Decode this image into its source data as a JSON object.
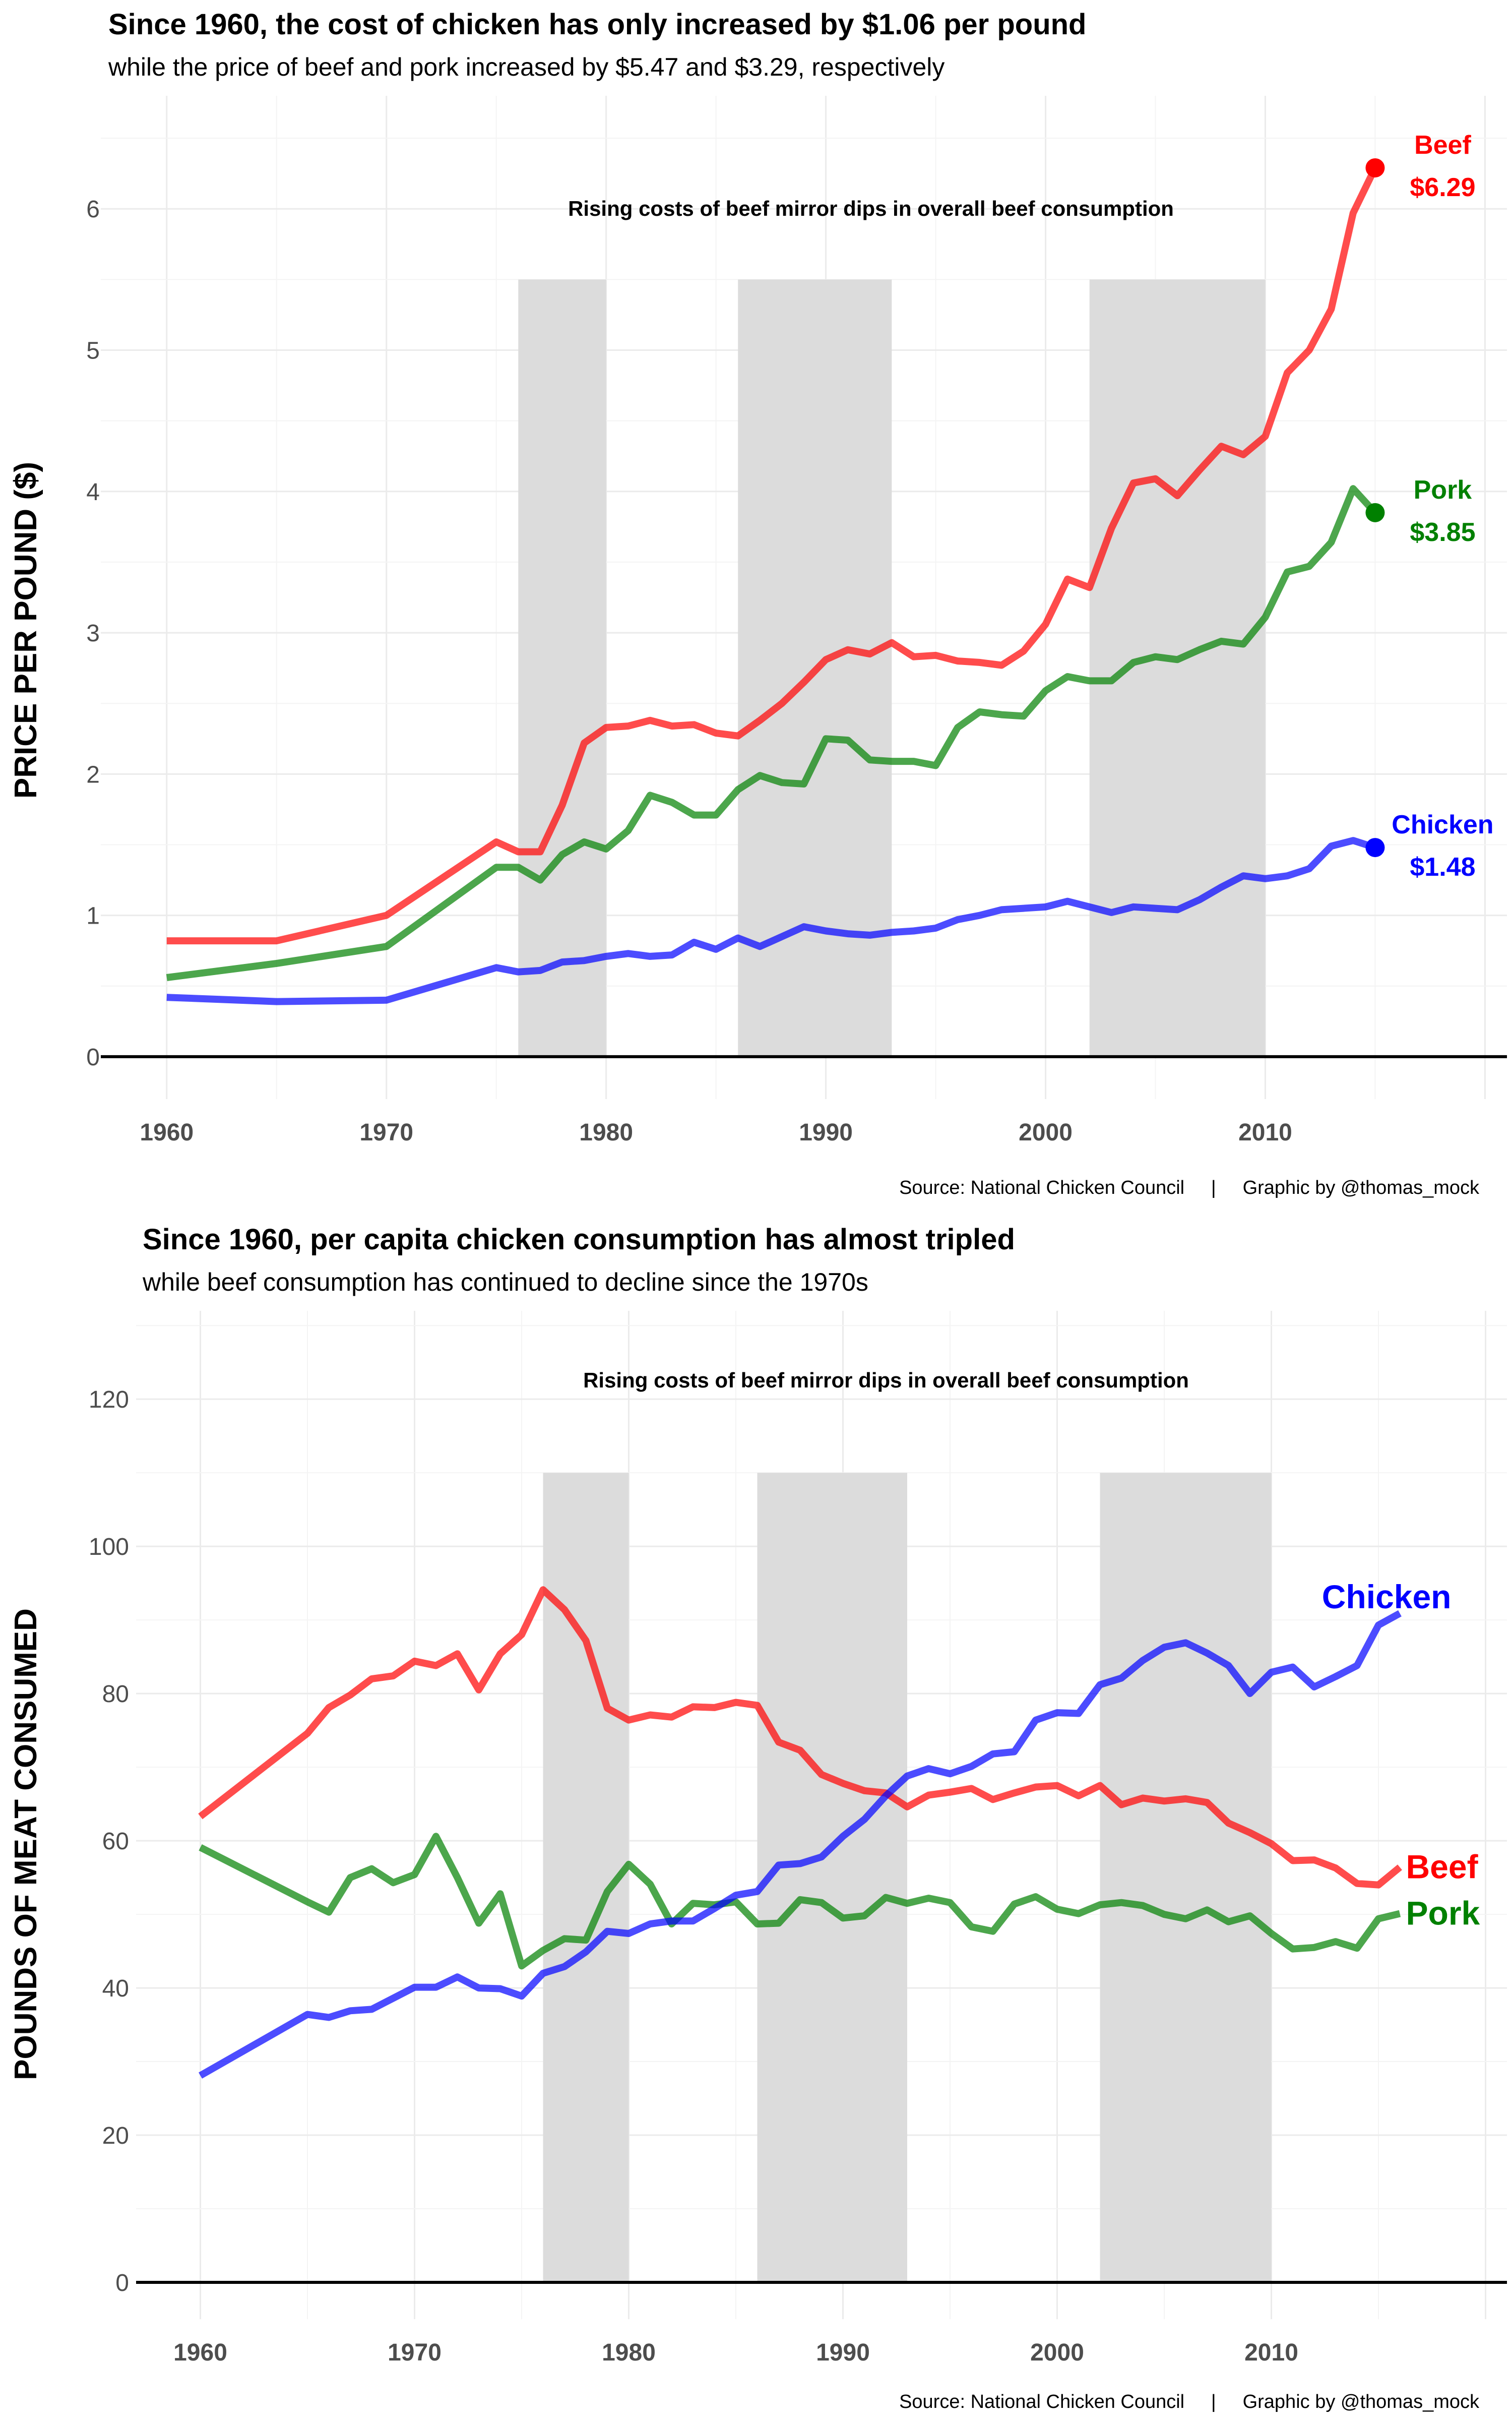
{
  "chart_data": [
    {
      "type": "line",
      "title": "Since 1960, the cost of chicken has only increased by $1.06 per pound",
      "subtitle": "while the price of beef and pork increased by $5.47 and $3.29, respectively",
      "xlabel": "",
      "ylabel": "PRICE PER POUND ($)",
      "xlim": [
        1957,
        2021
      ],
      "ylim": [
        -0.3,
        6.8
      ],
      "x_ticks": [
        1960,
        1970,
        1980,
        1990,
        2000,
        2010
      ],
      "y_ticks": [
        0,
        1,
        2,
        3,
        4,
        5,
        6
      ],
      "grid": true,
      "shaded_periods": [
        [
          1976,
          1980
        ],
        [
          1986,
          1993
        ],
        [
          2002,
          2010
        ]
      ],
      "shade_top": 5.5,
      "annotation": "Rising costs of beef mirror dips in overall beef consumption",
      "caption": "Source: National Chicken Council     |     Graphic by @thomas_mock",
      "series": [
        {
          "name": "Beef",
          "color": "#FF0000",
          "end_label": "Beef",
          "end_value_label": "$6.29",
          "end_point": [
            2015,
            6.29
          ],
          "x": [
            1960,
            1965,
            1970,
            1975,
            1976,
            1977,
            1978,
            1979,
            1980,
            1981,
            1982,
            1983,
            1984,
            1985,
            1986,
            1987,
            1988,
            1989,
            1990,
            1991,
            1992,
            1993,
            1994,
            1995,
            1996,
            1997,
            1998,
            1999,
            2000,
            2001,
            2002,
            2003,
            2004,
            2005,
            2006,
            2007,
            2008,
            2009,
            2010,
            2011,
            2012,
            2013,
            2014,
            2015
          ],
          "values": [
            0.82,
            0.82,
            1.0,
            1.52,
            1.45,
            1.45,
            1.78,
            2.22,
            2.33,
            2.34,
            2.38,
            2.34,
            2.35,
            2.29,
            2.27,
            2.38,
            2.5,
            2.65,
            2.81,
            2.88,
            2.85,
            2.93,
            2.83,
            2.84,
            2.8,
            2.79,
            2.77,
            2.87,
            3.06,
            3.38,
            3.32,
            3.74,
            4.06,
            4.09,
            3.97,
            4.15,
            4.32,
            4.26,
            4.39,
            4.84,
            5.0,
            5.29,
            5.97,
            6.29
          ]
        },
        {
          "name": "Pork",
          "color": "#008000",
          "end_label": "Pork",
          "end_value_label": "$3.85",
          "end_point": [
            2015,
            3.85
          ],
          "x": [
            1960,
            1965,
            1970,
            1975,
            1976,
            1977,
            1978,
            1979,
            1980,
            1981,
            1982,
            1983,
            1984,
            1985,
            1986,
            1987,
            1988,
            1989,
            1990,
            1991,
            1992,
            1993,
            1994,
            1995,
            1996,
            1997,
            1998,
            1999,
            2000,
            2001,
            2002,
            2003,
            2004,
            2005,
            2006,
            2007,
            2008,
            2009,
            2010,
            2011,
            2012,
            2013,
            2014,
            2015
          ],
          "values": [
            0.56,
            0.66,
            0.78,
            1.34,
            1.34,
            1.25,
            1.43,
            1.52,
            1.47,
            1.6,
            1.85,
            1.8,
            1.71,
            1.71,
            1.89,
            1.99,
            1.94,
            1.93,
            2.25,
            2.24,
            2.1,
            2.09,
            2.09,
            2.06,
            2.33,
            2.44,
            2.42,
            2.41,
            2.59,
            2.69,
            2.66,
            2.66,
            2.79,
            2.83,
            2.81,
            2.88,
            2.94,
            2.92,
            3.11,
            3.43,
            3.47,
            3.64,
            4.02,
            3.85
          ]
        },
        {
          "name": "Chicken",
          "color": "#0000FF",
          "end_label": "Chicken",
          "end_value_label": "$1.48",
          "end_point": [
            2015,
            1.48
          ],
          "x": [
            1960,
            1965,
            1970,
            1975,
            1976,
            1977,
            1978,
            1979,
            1980,
            1981,
            1982,
            1983,
            1984,
            1985,
            1986,
            1987,
            1988,
            1989,
            1990,
            1991,
            1992,
            1993,
            1994,
            1995,
            1996,
            1997,
            1998,
            1999,
            2000,
            2001,
            2002,
            2003,
            2004,
            2005,
            2006,
            2007,
            2008,
            2009,
            2010,
            2011,
            2012,
            2013,
            2014,
            2015
          ],
          "values": [
            0.42,
            0.39,
            0.4,
            0.63,
            0.6,
            0.61,
            0.67,
            0.68,
            0.71,
            0.73,
            0.71,
            0.72,
            0.81,
            0.76,
            0.84,
            0.78,
            0.85,
            0.92,
            0.89,
            0.87,
            0.86,
            0.88,
            0.89,
            0.91,
            0.97,
            1.0,
            1.04,
            1.05,
            1.06,
            1.1,
            1.06,
            1.02,
            1.06,
            1.05,
            1.04,
            1.11,
            1.2,
            1.28,
            1.26,
            1.28,
            1.33,
            1.49,
            1.53,
            1.48
          ]
        }
      ]
    },
    {
      "type": "line",
      "title": "Since 1960, per capita chicken consumption has almost tripled",
      "subtitle": "while beef consumption has continued to decline since the 1970s",
      "xlabel": "",
      "ylabel": "POUNDS OF MEAT CONSUMED",
      "xlim": [
        1957,
        2021
      ],
      "ylim": [
        -5,
        132
      ],
      "x_ticks": [
        1960,
        1970,
        1980,
        1990,
        2000,
        2010
      ],
      "y_ticks": [
        0,
        20,
        40,
        60,
        80,
        100,
        120
      ],
      "grid": true,
      "shaded_periods": [
        [
          1976,
          1980
        ],
        [
          1986,
          1993
        ],
        [
          2002,
          2010
        ]
      ],
      "shade_top": 110,
      "annotation": "Rising costs of beef mirror dips in overall beef consumption",
      "caption": "Source: National Chicken Council     |     Graphic by @thomas_mock",
      "series": [
        {
          "name": "Beef",
          "color": "#FF0000",
          "end_label": "Beef",
          "x": [
            1960,
            1965,
            1966,
            1967,
            1968,
            1969,
            1970,
            1971,
            1972,
            1973,
            1974,
            1975,
            1976,
            1977,
            1978,
            1979,
            1980,
            1981,
            1982,
            1983,
            1984,
            1985,
            1986,
            1987,
            1988,
            1989,
            1990,
            1991,
            1992,
            1993,
            1994,
            1995,
            1996,
            1997,
            1998,
            1999,
            2000,
            2001,
            2002,
            2003,
            2004,
            2005,
            2006,
            2007,
            2008,
            2009,
            2010,
            2011,
            2012,
            2013,
            2014,
            2015,
            2016
          ],
          "values": [
            63.3,
            74.6,
            78.1,
            79.8,
            82.0,
            82.4,
            84.4,
            83.8,
            85.4,
            80.5,
            85.4,
            88.0,
            94.1,
            91.4,
            87.2,
            78.0,
            76.4,
            77.1,
            76.8,
            78.2,
            78.1,
            78.8,
            78.4,
            73.4,
            72.3,
            69.0,
            67.8,
            66.8,
            66.5,
            64.6,
            66.2,
            66.6,
            67.1,
            65.6,
            66.5,
            67.3,
            67.5,
            66.1,
            67.5,
            64.9,
            65.8,
            65.4,
            65.7,
            65.2,
            62.4,
            61.1,
            59.6,
            57.3,
            57.4,
            56.3,
            54.2,
            54.0,
            56.4
          ]
        },
        {
          "name": "Pork",
          "color": "#008000",
          "end_label": "Pork",
          "x": [
            1960,
            1965,
            1966,
            1967,
            1968,
            1969,
            1970,
            1971,
            1972,
            1973,
            1974,
            1975,
            1976,
            1977,
            1978,
            1979,
            1980,
            1981,
            1982,
            1983,
            1984,
            1985,
            1986,
            1987,
            1988,
            1989,
            1990,
            1991,
            1992,
            1993,
            1994,
            1995,
            1996,
            1997,
            1998,
            1999,
            2000,
            2001,
            2002,
            2003,
            2004,
            2005,
            2006,
            2007,
            2008,
            2009,
            2010,
            2011,
            2012,
            2013,
            2014,
            2015,
            2016
          ],
          "values": [
            59.1,
            51.7,
            50.3,
            55.0,
            56.2,
            54.3,
            55.4,
            60.6,
            55.0,
            48.8,
            52.8,
            43.0,
            45.1,
            46.7,
            46.5,
            53.1,
            56.8,
            54.1,
            48.7,
            51.5,
            51.3,
            51.7,
            48.7,
            48.8,
            52.0,
            51.6,
            49.5,
            49.8,
            52.3,
            51.5,
            52.2,
            51.6,
            48.3,
            47.7,
            51.4,
            52.4,
            50.7,
            50.1,
            51.3,
            51.6,
            51.2,
            50.0,
            49.4,
            50.6,
            49.0,
            49.8,
            47.4,
            45.3,
            45.5,
            46.3,
            45.4,
            49.4,
            50.1
          ]
        },
        {
          "name": "Chicken",
          "color": "#0000FF",
          "end_label": "Chicken",
          "x": [
            1960,
            1965,
            1966,
            1967,
            1968,
            1969,
            1970,
            1971,
            1972,
            1973,
            1974,
            1975,
            1976,
            1977,
            1978,
            1979,
            1980,
            1981,
            1982,
            1983,
            1984,
            1985,
            1986,
            1987,
            1988,
            1989,
            1990,
            1991,
            1992,
            1993,
            1994,
            1995,
            1996,
            1997,
            1998,
            1999,
            2000,
            2001,
            2002,
            2003,
            2004,
            2005,
            2006,
            2007,
            2008,
            2009,
            2010,
            2011,
            2012,
            2013,
            2014,
            2015,
            2016
          ],
          "values": [
            28.1,
            36.4,
            36.0,
            36.9,
            37.1,
            38.6,
            40.1,
            40.1,
            41.5,
            40.0,
            39.9,
            38.9,
            42.0,
            42.9,
            44.9,
            47.7,
            47.4,
            48.7,
            49.1,
            49.1,
            50.8,
            52.6,
            53.1,
            56.7,
            56.9,
            57.8,
            60.6,
            62.9,
            66.1,
            68.8,
            69.8,
            69.1,
            70.1,
            71.8,
            72.1,
            76.4,
            77.4,
            77.3,
            81.2,
            82.1,
            84.5,
            86.3,
            86.9,
            85.5,
            83.8,
            80.0,
            82.9,
            83.6,
            80.9,
            82.3,
            83.8,
            89.3,
            90.9
          ]
        }
      ]
    }
  ]
}
